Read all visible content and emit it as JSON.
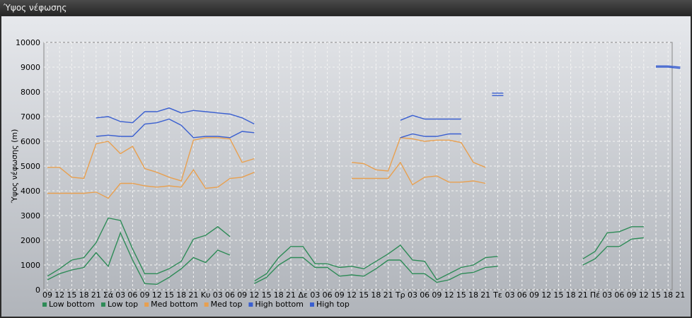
{
  "window": {
    "title": "Ύψος νέφωσης"
  },
  "chart_data": {
    "type": "line",
    "title": "",
    "ylabel": "Ύψος νέφωσης (m)",
    "xlabel": "",
    "ylim": [
      0,
      10000
    ],
    "yticks": [
      0,
      1000,
      2000,
      3000,
      4000,
      5000,
      6000,
      7000,
      8000,
      9000,
      10000
    ],
    "grid": true,
    "legend_position": "bottom-left",
    "x_tick_labels": [
      "09",
      "12",
      "15",
      "18",
      "21",
      "Σά",
      "03",
      "06",
      "09",
      "12",
      "15",
      "18",
      "21",
      "Κυ",
      "03",
      "06",
      "09",
      "12",
      "15",
      "18",
      "21",
      "Δε",
      "03",
      "06",
      "09",
      "12",
      "15",
      "18",
      "21",
      "Τρ",
      "03",
      "06",
      "09",
      "12",
      "15",
      "18",
      "21",
      "Τε",
      "03",
      "06",
      "09",
      "12",
      "15",
      "18",
      "21",
      "Πέ",
      "03",
      "06",
      "09",
      "12",
      "15",
      "18",
      "21"
    ],
    "series": [
      {
        "name": "Low bottom",
        "color": "#2e8b57",
        "values": [
          400,
          650,
          800,
          900,
          1500,
          950,
          2300,
          1200,
          250,
          220,
          500,
          850,
          1300,
          1100,
          1600,
          1400,
          null,
          250,
          500,
          1000,
          1300,
          1300,
          900,
          900,
          550,
          600,
          550,
          850,
          1200,
          1200,
          650,
          650,
          300,
          400,
          650,
          700,
          900,
          950,
          null,
          null,
          null,
          null,
          null,
          null,
          1000,
          1250,
          1750,
          1750,
          2050,
          2100,
          null,
          null,
          null
        ]
      },
      {
        "name": "Low top",
        "color": "#2e8b57",
        "values": [
          550,
          850,
          1200,
          1300,
          1900,
          2900,
          2800,
          1650,
          650,
          650,
          850,
          1150,
          2050,
          2200,
          2550,
          2150,
          null,
          350,
          650,
          1300,
          1750,
          1750,
          1050,
          1050,
          900,
          950,
          850,
          1150,
          1450,
          1800,
          1200,
          1150,
          400,
          650,
          900,
          1000,
          1300,
          1350,
          null,
          null,
          null,
          null,
          null,
          null,
          1250,
          1550,
          2300,
          2350,
          2550,
          2550,
          null,
          null,
          null
        ]
      },
      {
        "name": "Med bottom",
        "color": "#e8a050",
        "values": [
          3900,
          3900,
          3900,
          3900,
          3950,
          3700,
          4300,
          4300,
          4200,
          4150,
          4200,
          4150,
          4850,
          4100,
          4150,
          4500,
          4550,
          4750,
          null,
          null,
          null,
          null,
          null,
          null,
          null,
          4500,
          4500,
          4500,
          4500,
          5150,
          4250,
          4550,
          4600,
          4350,
          4350,
          4400,
          4300,
          null,
          null,
          null,
          null,
          null,
          null,
          null,
          null,
          null,
          null,
          null,
          null,
          null,
          null,
          null,
          null
        ]
      },
      {
        "name": "Med top",
        "color": "#e8a050",
        "values": [
          4950,
          4950,
          4550,
          4500,
          5900,
          6000,
          5500,
          5800,
          4900,
          4750,
          4550,
          4400,
          6050,
          6150,
          6150,
          6100,
          5150,
          5300,
          null,
          null,
          null,
          null,
          null,
          null,
          null,
          5150,
          5100,
          4850,
          4800,
          6150,
          6100,
          6000,
          6050,
          6050,
          5950,
          5150,
          4950,
          null,
          null,
          null,
          null,
          null,
          null,
          null,
          null,
          null,
          null,
          null,
          null,
          null,
          null,
          null,
          null
        ]
      },
      {
        "name": "High bottom",
        "color": "#3a5fd0",
        "values": [
          null,
          null,
          null,
          null,
          6200,
          6250,
          6200,
          6200,
          6700,
          6750,
          6900,
          6650,
          6150,
          6200,
          6200,
          6150,
          6400,
          6350,
          null,
          null,
          null,
          null,
          null,
          null,
          null,
          null,
          null,
          null,
          null,
          6150,
          6300,
          6200,
          6200,
          6300,
          6300,
          null,
          null,
          7850,
          null,
          null,
          null,
          null,
          null,
          null,
          null,
          null,
          null,
          null,
          null,
          null,
          9000,
          9000,
          8950
        ]
      },
      {
        "name": "High top",
        "color": "#3a5fd0",
        "values": [
          null,
          null,
          null,
          null,
          6950,
          7000,
          6800,
          6750,
          7200,
          7200,
          7350,
          7150,
          7250,
          7200,
          7150,
          7100,
          6950,
          6700,
          null,
          null,
          null,
          null,
          null,
          null,
          null,
          null,
          null,
          null,
          null,
          6850,
          7050,
          6900,
          6900,
          6900,
          6900,
          null,
          null,
          7950,
          null,
          null,
          null,
          null,
          null,
          null,
          null,
          null,
          null,
          null,
          null,
          null,
          9050,
          9050,
          9000
        ]
      }
    ]
  }
}
